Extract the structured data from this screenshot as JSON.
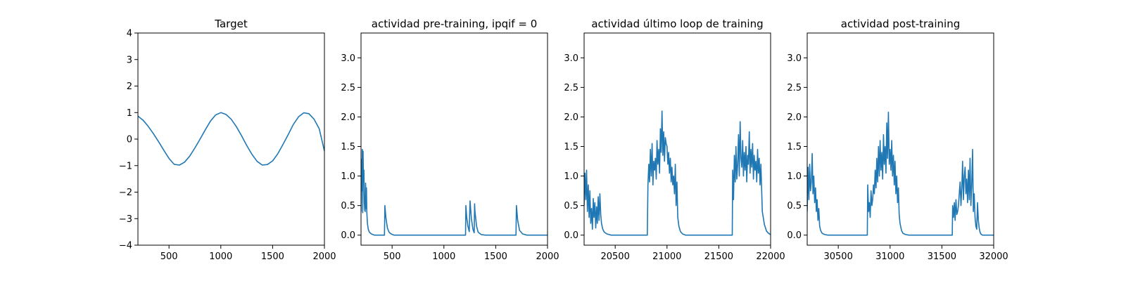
{
  "figure": {
    "line_color": "#1f77b4",
    "background": "#ffffff"
  },
  "chart_data": [
    {
      "type": "line",
      "title": "Target",
      "xlim": [
        200,
        2000
      ],
      "ylim": [
        -4,
        4
      ],
      "xticks": [
        500,
        1000,
        1500,
        2000
      ],
      "yticks": [
        -4,
        -3,
        -2,
        -1,
        0,
        1,
        2,
        3,
        4
      ],
      "grid": false,
      "series": [
        {
          "x": [
            200,
            250,
            300,
            350,
            400,
            450,
            500,
            550,
            600,
            650,
            700,
            750,
            800,
            850,
            900,
            950,
            1000,
            1050,
            1100,
            1150,
            1200,
            1250,
            1300,
            1350,
            1400,
            1450,
            1500,
            1550,
            1600,
            1650,
            1700,
            1750,
            1800,
            1850,
            1900,
            1950,
            2000
          ],
          "y": [
            0.87,
            0.71,
            0.48,
            0.2,
            -0.1,
            -0.42,
            -0.73,
            -0.95,
            -0.98,
            -0.87,
            -0.64,
            -0.33,
            0.0,
            0.35,
            0.68,
            0.91,
            1.0,
            0.93,
            0.75,
            0.47,
            0.13,
            -0.24,
            -0.57,
            -0.84,
            -0.98,
            -0.96,
            -0.82,
            -0.55,
            -0.2,
            0.17,
            0.55,
            0.84,
            0.99,
            0.96,
            0.75,
            0.39,
            -0.45
          ]
        }
      ]
    },
    {
      "type": "line",
      "title": "actividad pre-training, ipqif = 0",
      "xlim": [
        200,
        2000
      ],
      "ylim": [
        -0.17,
        3.42
      ],
      "xticks": [
        500,
        1000,
        1500,
        2000
      ],
      "yticks": [
        0.0,
        0.5,
        1.0,
        1.5,
        2.0,
        2.5,
        3.0
      ],
      "grid": false,
      "series": [
        {
          "x": [
            200,
            204,
            208,
            212,
            216,
            220,
            224,
            228,
            232,
            236,
            240,
            244,
            248,
            252,
            256,
            262,
            270,
            280,
            300,
            330,
            360,
            400,
            426,
            430,
            440,
            455,
            470,
            490,
            520,
            600,
            800,
            1000,
            1100,
            1200,
            1209,
            1212,
            1220,
            1232,
            1245,
            1248,
            1252,
            1265,
            1280,
            1292,
            1296,
            1300,
            1315,
            1330,
            1360,
            1400,
            1500,
            1600,
            1696,
            1700,
            1712,
            1730,
            1760,
            1800,
            1900,
            2000
          ],
          "y": [
            0.4,
            1.28,
            0.75,
            1.45,
            0.38,
            1.42,
            0.9,
            1.1,
            0.55,
            0.42,
            0.4,
            0.88,
            0.45,
            0.8,
            0.4,
            0.2,
            0.1,
            0.05,
            0.02,
            0.0,
            0.0,
            0.0,
            0.0,
            0.5,
            0.3,
            0.12,
            0.05,
            0.02,
            0.0,
            0.0,
            0.0,
            0.0,
            0.0,
            0.0,
            0.0,
            0.5,
            0.3,
            0.15,
            0.06,
            0.33,
            0.58,
            0.28,
            0.1,
            0.04,
            0.53,
            0.4,
            0.15,
            0.05,
            0.01,
            0.0,
            0.0,
            0.0,
            0.0,
            0.5,
            0.25,
            0.08,
            0.02,
            0.0,
            0.0,
            0.0
          ]
        }
      ]
    },
    {
      "type": "line",
      "title": "actividad último loop de training",
      "xlim": [
        20200,
        22000
      ],
      "ylim": [
        -0.17,
        3.42
      ],
      "xticks": [
        20500,
        21000,
        21500,
        22000
      ],
      "yticks": [
        0.0,
        0.5,
        1.0,
        1.5,
        2.0,
        2.5,
        3.0
      ],
      "grid": false,
      "series": [
        {
          "x": [
            20200,
            20208,
            20216,
            20224,
            20232,
            20240,
            20248,
            20256,
            20264,
            20272,
            20280,
            20288,
            20296,
            20304,
            20312,
            20320,
            20328,
            20336,
            20344,
            20352,
            20360,
            20368,
            20380,
            20395,
            20420,
            20460,
            20520,
            20600,
            20700,
            20810,
            20816,
            20824,
            20832,
            20840,
            20848,
            20856,
            20864,
            20872,
            20880,
            20888,
            20896,
            20904,
            20912,
            20920,
            20928,
            20936,
            20944,
            20952,
            20960,
            20968,
            20976,
            20984,
            20992,
            21000,
            21008,
            21016,
            21024,
            21032,
            21040,
            21048,
            21056,
            21064,
            21072,
            21080,
            21088,
            21096,
            21104,
            21115,
            21130,
            21150,
            21180,
            21230,
            21300,
            21400,
            21500,
            21600,
            21630,
            21634,
            21642,
            21650,
            21658,
            21666,
            21674,
            21682,
            21690,
            21698,
            21706,
            21714,
            21722,
            21730,
            21738,
            21746,
            21754,
            21762,
            21770,
            21778,
            21786,
            21794,
            21802,
            21810,
            21818,
            21826,
            21834,
            21842,
            21850,
            21858,
            21866,
            21874,
            21882,
            21890,
            21898,
            21906,
            21920,
            21940,
            21960,
            21980,
            22000
          ],
          "y": [
            0.5,
            1.05,
            0.6,
            1.1,
            0.4,
            0.85,
            0.3,
            0.75,
            0.2,
            0.45,
            0.1,
            0.62,
            0.3,
            0.55,
            0.12,
            0.48,
            0.2,
            0.65,
            0.25,
            0.7,
            0.35,
            0.2,
            0.1,
            0.05,
            0.02,
            0.0,
            0.0,
            0.0,
            0.0,
            0.0,
            0.85,
            1.2,
            0.9,
            1.45,
            1.0,
            1.55,
            0.85,
            1.25,
            1.1,
            1.3,
            0.95,
            1.6,
            1.2,
            1.45,
            1.05,
            1.8,
            1.4,
            2.1,
            1.35,
            1.75,
            1.25,
            1.65,
            1.55,
            1.5,
            1.2,
            1.4,
            1.05,
            1.3,
            0.9,
            1.15,
            0.85,
            1.0,
            0.7,
            1.2,
            0.5,
            0.9,
            0.3,
            0.15,
            0.06,
            0.02,
            0.0,
            0.0,
            0.0,
            0.0,
            0.0,
            0.0,
            0.0,
            1.1,
            0.6,
            1.35,
            0.9,
            1.5,
            0.95,
            1.2,
            1.7,
            1.0,
            1.92,
            1.3,
            1.15,
            1.6,
            1.0,
            1.4,
            1.1,
            1.5,
            0.9,
            1.35,
            1.2,
            1.75,
            1.05,
            1.45,
            1.15,
            1.55,
            0.95,
            1.35,
            1.1,
            1.25,
            0.9,
            1.45,
            1.05,
            1.3,
            0.85,
            1.2,
            0.4,
            0.18,
            0.07,
            0.03,
            0.01
          ]
        }
      ]
    },
    {
      "type": "line",
      "title": "actividad post-training",
      "xlim": [
        30200,
        32000
      ],
      "ylim": [
        -0.17,
        3.42
      ],
      "xticks": [
        30500,
        31000,
        31500,
        32000
      ],
      "yticks": [
        0.0,
        0.5,
        1.0,
        1.5,
        2.0,
        2.5,
        3.0
      ],
      "grid": false,
      "series": [
        {
          "x": [
            30200,
            30208,
            30216,
            30224,
            30232,
            30240,
            30248,
            30256,
            30264,
            30272,
            30280,
            30288,
            30296,
            30304,
            30312,
            30320,
            30330,
            30345,
            30370,
            30400,
            30450,
            30550,
            30650,
            30780,
            30784,
            30792,
            30800,
            30808,
            30816,
            30824,
            30832,
            30840,
            30848,
            30856,
            30864,
            30872,
            30880,
            30888,
            30896,
            30904,
            30912,
            30920,
            30928,
            30936,
            30944,
            30952,
            30960,
            30968,
            30976,
            30984,
            30992,
            31000,
            31008,
            31016,
            31024,
            31032,
            31040,
            31048,
            31056,
            31064,
            31072,
            31080,
            31088,
            31096,
            31110,
            31125,
            31150,
            31180,
            31230,
            31300,
            31400,
            31500,
            31600,
            31604,
            31612,
            31620,
            31628,
            31636,
            31644,
            31652,
            31660,
            31668,
            31676,
            31684,
            31692,
            31700,
            31708,
            31716,
            31724,
            31732,
            31740,
            31748,
            31756,
            31764,
            31772,
            31780,
            31788,
            31796,
            31804,
            31812,
            31820,
            31828,
            31836,
            31844,
            31852,
            31860,
            31868,
            31876,
            31884,
            31892,
            31900,
            31915,
            31930,
            31960,
            32000
          ],
          "y": [
            0.4,
            1.15,
            0.6,
            1.2,
            0.75,
            0.9,
            1.38,
            0.7,
            1.0,
            0.55,
            0.8,
            0.4,
            0.6,
            0.25,
            0.45,
            0.15,
            0.08,
            0.03,
            0.01,
            0.0,
            0.0,
            0.0,
            0.0,
            0.0,
            0.85,
            0.4,
            0.55,
            0.3,
            0.75,
            0.5,
            0.6,
            0.85,
            0.7,
            1.1,
            0.8,
            1.3,
            0.9,
            1.5,
            1.0,
            1.6,
            1.1,
            1.4,
            0.95,
            1.7,
            1.2,
            1.5,
            1.05,
            1.9,
            1.3,
            2.08,
            1.2,
            1.45,
            1.1,
            1.6,
            1.0,
            1.35,
            0.85,
            1.25,
            0.7,
            1.0,
            0.55,
            0.8,
            0.35,
            0.2,
            0.08,
            0.03,
            0.01,
            0.0,
            0.0,
            0.0,
            0.0,
            0.0,
            0.0,
            0.5,
            0.3,
            0.55,
            0.25,
            0.6,
            0.35,
            0.4,
            0.5,
            0.7,
            0.9,
            0.5,
            0.8,
            1.25,
            0.6,
            1.0,
            1.15,
            0.7,
            0.95,
            0.55,
            1.1,
            0.6,
            1.3,
            0.5,
            0.85,
            1.45,
            0.4,
            0.7,
            0.3,
            0.15,
            0.1,
            0.55,
            0.25,
            0.12,
            0.05,
            0.02,
            0.01,
            0.0,
            0.0,
            0.0,
            0.0,
            0.0,
            0.0
          ]
        }
      ]
    }
  ]
}
